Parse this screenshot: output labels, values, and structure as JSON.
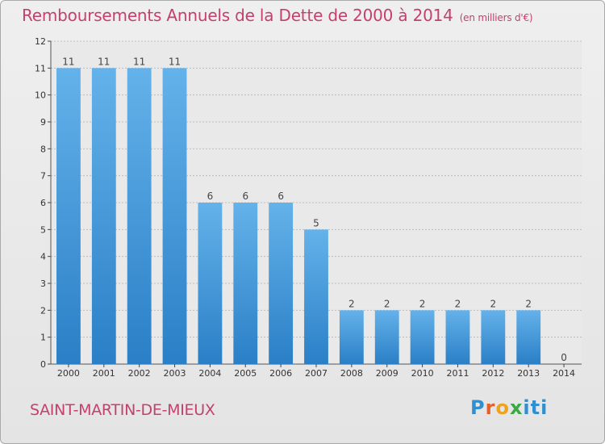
{
  "header": {
    "title": "Remboursements Annuels de la Dette de 2000 à 2014",
    "unit": "(en milliers d'€)"
  },
  "footer": {
    "commune": "SAINT-MARTIN-DE-MIEUX",
    "logo": [
      "P",
      "r",
      "o",
      "x",
      "iti"
    ]
  },
  "colors": {
    "title": "#c4416b",
    "bar_top": "#64b2ea",
    "bar_bottom": "#2a7fc6",
    "grid": "#bdbdbd"
  },
  "chart_data": {
    "type": "bar",
    "categories": [
      "2000",
      "2001",
      "2002",
      "2003",
      "2004",
      "2005",
      "2006",
      "2007",
      "2008",
      "2009",
      "2010",
      "2011",
      "2012",
      "2013",
      "2014"
    ],
    "values": [
      11,
      11,
      11,
      11,
      6,
      6,
      6,
      5,
      2,
      2,
      2,
      2,
      2,
      2,
      0
    ],
    "title": "Remboursements Annuels de la Dette de 2000 à 2014",
    "subtitle": "(en milliers d'€)",
    "ylim": [
      0,
      12
    ],
    "yticks": [
      0,
      1,
      2,
      3,
      4,
      5,
      6,
      7,
      8,
      9,
      10,
      11,
      12
    ],
    "grid": true,
    "data_labels": true
  }
}
